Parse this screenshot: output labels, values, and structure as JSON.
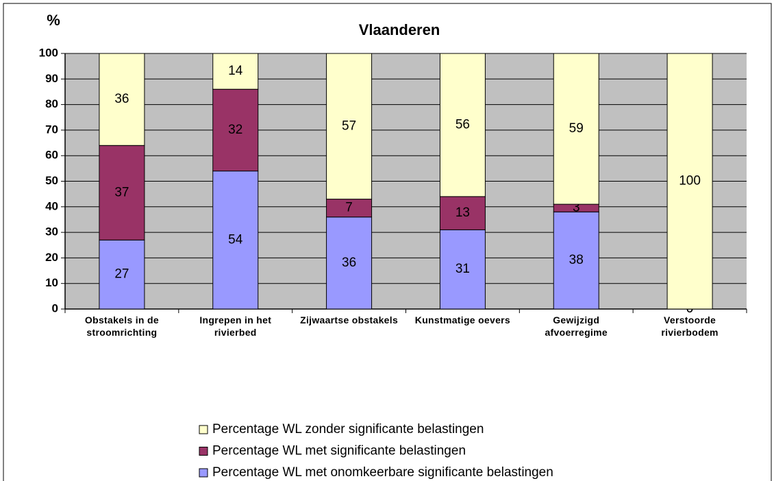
{
  "chart_data": {
    "type": "stacked_bar",
    "title": "Vlaanderen",
    "y_axis_label": "%",
    "categories": [
      "Obstakels in de stroomrichting",
      "Ingrepen in het rivierbed",
      "Zijwaartse obstakels",
      "Kunstmatige oevers",
      "Gewijzigd afvoerregime",
      "Verstoorde rivierbodem"
    ],
    "series": [
      {
        "name": "Percentage WL met onomkeerbare significante belastingen",
        "color": "#9999ff",
        "values": [
          27,
          54,
          36,
          31,
          38,
          0
        ]
      },
      {
        "name": "Percentage WL met significante belastingen",
        "color": "#993366",
        "values": [
          37,
          32,
          7,
          13,
          3,
          0
        ]
      },
      {
        "name": "Percentage WL zonder significante belastingen",
        "color": "#ffffcc",
        "values": [
          36,
          14,
          57,
          56,
          59,
          100
        ]
      }
    ],
    "ylim": [
      0,
      100
    ],
    "yticks": [
      0,
      10,
      20,
      30,
      40,
      50,
      60,
      70,
      80,
      90,
      100
    ],
    "grid": true,
    "plot_background": "#c0c0c0"
  }
}
